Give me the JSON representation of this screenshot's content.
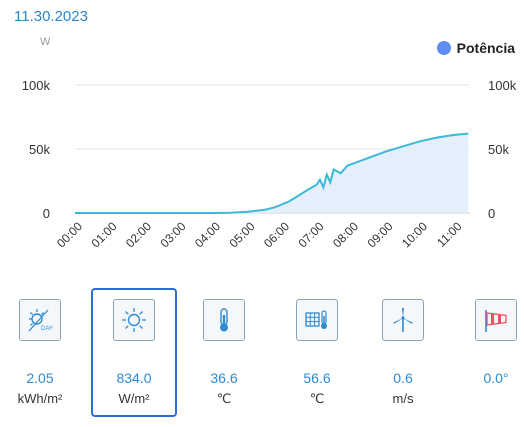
{
  "header": {
    "date": "11.30.2023",
    "unit": "W",
    "legend_label": "Potência",
    "legend_color": "#5f8ef3"
  },
  "chart_data": {
    "type": "area",
    "x_labels": [
      "00:00",
      "01:00",
      "02:00",
      "03:00",
      "04:00",
      "05:00",
      "06:00",
      "07:00",
      "08:00",
      "09:00",
      "10:00",
      "11:00"
    ],
    "y_ticks_left": [
      "100k",
      "50k",
      "0"
    ],
    "y_ticks_right": [
      "100k",
      "50k",
      "0"
    ],
    "ylim": [
      0,
      100000
    ],
    "grid": true,
    "legend_position": "top-right",
    "series": [
      {
        "name": "Potência",
        "color": "#3bb9d6",
        "fill": "#e4effb",
        "points": [
          [
            0,
            0
          ],
          [
            1,
            0
          ],
          [
            2,
            0
          ],
          [
            3,
            0
          ],
          [
            4,
            0
          ],
          [
            4.5,
            200
          ],
          [
            5,
            1000
          ],
          [
            5.5,
            2500
          ],
          [
            5.8,
            4500
          ],
          [
            6.2,
            9000
          ],
          [
            6.5,
            14000
          ],
          [
            6.8,
            19000
          ],
          [
            7.0,
            22000
          ],
          [
            7.1,
            26000
          ],
          [
            7.2,
            20000
          ],
          [
            7.3,
            30000
          ],
          [
            7.4,
            24000
          ],
          [
            7.5,
            34000
          ],
          [
            7.7,
            31000
          ],
          [
            7.9,
            37000
          ],
          [
            8.2,
            40000
          ],
          [
            8.6,
            44000
          ],
          [
            9.0,
            48000
          ],
          [
            9.5,
            52000
          ],
          [
            10.0,
            56000
          ],
          [
            10.5,
            59000
          ],
          [
            11.0,
            61000
          ],
          [
            11.4,
            62000
          ]
        ]
      }
    ]
  },
  "metrics": [
    {
      "name": "daily-irradiation",
      "icon": "sun-day-icon",
      "value": "2.05",
      "unit": "kWh/m²"
    },
    {
      "name": "irradiance",
      "icon": "sun-icon",
      "value": "834.0",
      "unit": "W/m²"
    },
    {
      "name": "ambient-temperature",
      "icon": "thermometer-icon",
      "value": "36.6",
      "unit": "℃"
    },
    {
      "name": "module-temperature",
      "icon": "panel-thermometer-icon",
      "value": "56.6",
      "unit": "℃"
    },
    {
      "name": "wind-speed",
      "icon": "wind-turbine-icon",
      "value": "0.6",
      "unit": "m/s"
    },
    {
      "name": "wind-direction",
      "icon": "windsock-icon",
      "value": "0.0°",
      "unit": ""
    }
  ],
  "colors": {
    "accent": "#2f8bcf",
    "highlight": "#2a6fd3"
  }
}
